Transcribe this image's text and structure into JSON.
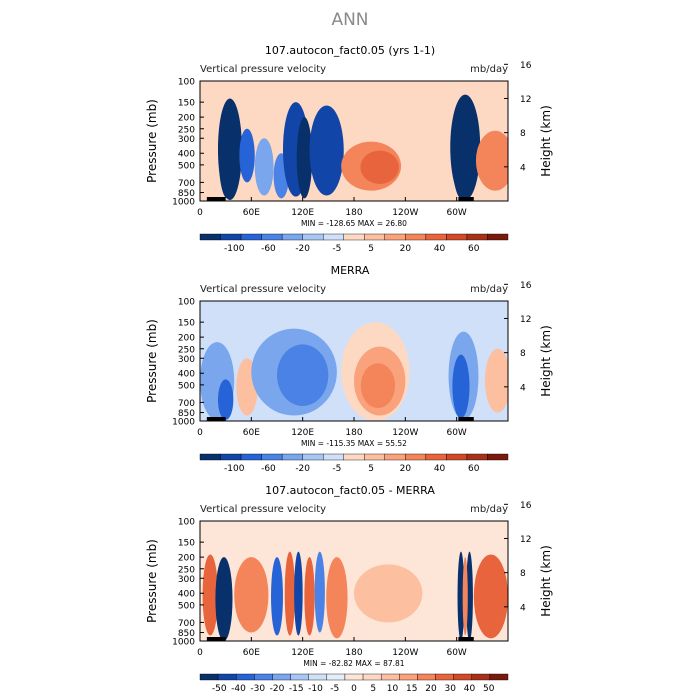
{
  "title": "ANN",
  "colors": {
    "full": [
      "#08306b",
      "#1146a8",
      "#2663d6",
      "#4a82e6",
      "#7aa6ee",
      "#a8c6f3",
      "#cfe0f8",
      "#fdd9c4",
      "#fcbfa0",
      "#f9a27b",
      "#f4845a",
      "#e8643c",
      "#d14a25",
      "#a83218",
      "#7a1a0d"
    ],
    "diff": [
      "#08306b",
      "#1146a8",
      "#2663d6",
      "#4a82e6",
      "#7aa6ee",
      "#a8c6f3",
      "#cfe0f8",
      "#e3edfb",
      "#fde6d8",
      "#fdd9c4",
      "#fcbfa0",
      "#f9a27b",
      "#f4845a",
      "#e8643c",
      "#d14a25",
      "#a83218",
      "#7a1a0d"
    ]
  },
  "chart_data": [
    {
      "type": "heatmap",
      "title": "107.autocon_fact0.05 (yrs 1-1)",
      "subtitle": "Vertical pressure velocity",
      "units": "mb/day",
      "ylabel": "Pressure (mb)",
      "ylabel_right": "Height (km)",
      "pressure_ticks": [
        "100",
        "150",
        "200",
        "250",
        "300",
        "400",
        "500",
        "700",
        "850",
        "1000"
      ],
      "height_ticks": [
        "4",
        "8",
        "12",
        "16"
      ],
      "x_ticks": [
        "0",
        "60E",
        "120E",
        "180",
        "120W",
        "60W"
      ],
      "xlim": [
        0,
        360
      ],
      "x_tick_values": [
        0,
        60,
        120,
        180,
        240,
        300
      ],
      "stats": "MIN = -128.65   MAX =  26.80",
      "colorbar_labels": [
        "-100",
        "-60",
        "-20",
        "-5",
        "5",
        "20",
        "40",
        "60"
      ],
      "colormap": "full",
      "bg_level": 7,
      "features": [
        {
          "lon": 35,
          "width": 28,
          "ptop": 140,
          "pbot": 980,
          "level": 0
        },
        {
          "lon": 32,
          "width": 20,
          "ptop": 200,
          "pbot": 950,
          "level": -1
        },
        {
          "lon": 55,
          "width": 18,
          "ptop": 250,
          "pbot": 700,
          "level": 2
        },
        {
          "lon": 75,
          "width": 22,
          "ptop": 300,
          "pbot": 900,
          "level": 4
        },
        {
          "lon": 95,
          "width": 18,
          "ptop": 400,
          "pbot": 950,
          "level": 3
        },
        {
          "lon": 112,
          "width": 30,
          "ptop": 150,
          "pbot": 920,
          "level": 1
        },
        {
          "lon": 122,
          "width": 18,
          "ptop": 200,
          "pbot": 950,
          "level": 0
        },
        {
          "lon": 148,
          "width": 40,
          "ptop": 160,
          "pbot": 900,
          "level": 1
        },
        {
          "lon": 200,
          "width": 70,
          "ptop": 320,
          "pbot": 820,
          "level": 10
        },
        {
          "lon": 210,
          "width": 45,
          "ptop": 380,
          "pbot": 720,
          "level": 11
        },
        {
          "lon": 310,
          "width": 35,
          "ptop": 130,
          "pbot": 980,
          "level": 0
        },
        {
          "lon": 306,
          "width": 22,
          "ptop": 200,
          "pbot": 960,
          "level": -1
        },
        {
          "lon": 345,
          "width": 45,
          "ptop": 260,
          "pbot": 820,
          "level": 10
        }
      ]
    },
    {
      "type": "heatmap",
      "title": "MERRA",
      "subtitle": "Vertical pressure velocity",
      "units": "mb/day",
      "ylabel": "Pressure (mb)",
      "ylabel_right": "Height (km)",
      "pressure_ticks": [
        "100",
        "150",
        "200",
        "250",
        "300",
        "400",
        "500",
        "700",
        "850",
        "1000"
      ],
      "height_ticks": [
        "4",
        "8",
        "12",
        "16"
      ],
      "x_ticks": [
        "0",
        "60E",
        "120E",
        "180",
        "120W",
        "60W"
      ],
      "xlim": [
        0,
        360
      ],
      "x_tick_values": [
        0,
        60,
        120,
        180,
        240,
        300
      ],
      "stats": "MIN = -115.35   MAX =  55.52",
      "colorbar_labels": [
        "-100",
        "-60",
        "-20",
        "-5",
        "5",
        "20",
        "40",
        "60"
      ],
      "colormap": "full",
      "bg_level": 6,
      "features": [
        {
          "lon": 20,
          "width": 40,
          "ptop": 220,
          "pbot": 980,
          "level": 4
        },
        {
          "lon": 30,
          "width": 18,
          "ptop": 450,
          "pbot": 980,
          "level": 2
        },
        {
          "lon": 55,
          "width": 25,
          "ptop": 300,
          "pbot": 900,
          "level": 8
        },
        {
          "lon": 110,
          "width": 100,
          "ptop": 170,
          "pbot": 900,
          "level": 4
        },
        {
          "lon": 120,
          "width": 60,
          "ptop": 230,
          "pbot": 750,
          "level": 3
        },
        {
          "lon": 205,
          "width": 80,
          "ptop": 150,
          "pbot": 1000,
          "level": 7
        },
        {
          "lon": 210,
          "width": 60,
          "ptop": 240,
          "pbot": 900,
          "level": 9
        },
        {
          "lon": 208,
          "width": 40,
          "ptop": 330,
          "pbot": 780,
          "level": 10
        },
        {
          "lon": 308,
          "width": 35,
          "ptop": 180,
          "pbot": 980,
          "level": 4
        },
        {
          "lon": 305,
          "width": 20,
          "ptop": 280,
          "pbot": 950,
          "level": 2
        },
        {
          "lon": 348,
          "width": 30,
          "ptop": 250,
          "pbot": 850,
          "level": 8
        }
      ]
    },
    {
      "type": "heatmap",
      "title": "107.autocon_fact0.05 - MERRA",
      "subtitle": "Vertical pressure velocity",
      "units": "mb/day",
      "ylabel": "Pressure (mb)",
      "ylabel_right": "Height (km)",
      "pressure_ticks": [
        "100",
        "150",
        "200",
        "250",
        "300",
        "400",
        "500",
        "700",
        "850",
        "1000"
      ],
      "height_ticks": [
        "4",
        "8",
        "12",
        "16"
      ],
      "x_ticks": [
        "0",
        "60E",
        "120E",
        "180",
        "120W",
        "60W"
      ],
      "xlim": [
        0,
        360
      ],
      "x_tick_values": [
        0,
        60,
        120,
        180,
        240,
        300
      ],
      "stats": "MIN = -82.82   MAX =  87.81",
      "colorbar_labels": [
        "-50",
        "-40",
        "-30",
        "-20",
        "-15",
        "-10",
        "-5",
        "0",
        "5",
        "10",
        "15",
        "20",
        "30",
        "40",
        "50"
      ],
      "colormap": "diff",
      "bg_level": 8,
      "features": [
        {
          "lon": 12,
          "width": 18,
          "ptop": 190,
          "pbot": 900,
          "level": 13
        },
        {
          "lon": 28,
          "width": 20,
          "ptop": 200,
          "pbot": 1000,
          "level": 0
        },
        {
          "lon": 60,
          "width": 40,
          "ptop": 200,
          "pbot": 850,
          "level": 12
        },
        {
          "lon": 90,
          "width": 14,
          "ptop": 200,
          "pbot": 900,
          "level": 2
        },
        {
          "lon": 105,
          "width": 12,
          "ptop": 180,
          "pbot": 900,
          "level": 13
        },
        {
          "lon": 115,
          "width": 10,
          "ptop": 180,
          "pbot": 900,
          "level": 1
        },
        {
          "lon": 128,
          "width": 12,
          "ptop": 200,
          "pbot": 900,
          "level": 13
        },
        {
          "lon": 140,
          "width": 12,
          "ptop": 180,
          "pbot": 850,
          "level": 3
        },
        {
          "lon": 160,
          "width": 25,
          "ptop": 200,
          "pbot": 950,
          "level": 12
        },
        {
          "lon": 220,
          "width": 80,
          "ptop": 230,
          "pbot": 700,
          "level": 10
        },
        {
          "lon": 305,
          "width": 8,
          "ptop": 180,
          "pbot": 1000,
          "level": 0
        },
        {
          "lon": 315,
          "width": 8,
          "ptop": 180,
          "pbot": 1000,
          "level": 0
        },
        {
          "lon": 310,
          "width": 6,
          "ptop": 200,
          "pbot": 900,
          "level": 12
        },
        {
          "lon": 340,
          "width": 40,
          "ptop": 190,
          "pbot": 950,
          "level": 13
        }
      ]
    }
  ]
}
